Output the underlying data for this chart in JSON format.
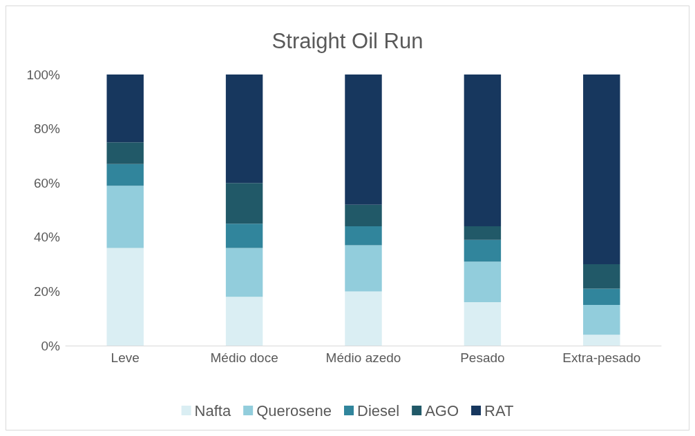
{
  "chart_data": {
    "type": "bar",
    "title": "Straight Oil Run",
    "stacked": true,
    "categories": [
      "Leve",
      "Médio doce",
      "Médio azedo",
      "Pesado",
      "Extra-pesado"
    ],
    "series": [
      {
        "name": "Nafta",
        "color": "#daeef3",
        "values": [
          36,
          18,
          20,
          16,
          4
        ]
      },
      {
        "name": "Querosene",
        "color": "#92cddc",
        "values": [
          23,
          18,
          17,
          15,
          11
        ]
      },
      {
        "name": "Diesel",
        "color": "#31859c",
        "values": [
          8,
          9,
          7,
          8,
          6
        ]
      },
      {
        "name": "AGO",
        "color": "#215968",
        "values": [
          8,
          15,
          8,
          5,
          9
        ]
      },
      {
        "name": "RAT",
        "color": "#17375e",
        "values": [
          25,
          40,
          48,
          56,
          70
        ]
      }
    ],
    "ylim": [
      0,
      100
    ],
    "yticks": [
      {
        "value": 0,
        "label": "0%"
      },
      {
        "value": 20,
        "label": "20%"
      },
      {
        "value": 40,
        "label": "40%"
      },
      {
        "value": 60,
        "label": "60%"
      },
      {
        "value": 80,
        "label": "80%"
      },
      {
        "value": 100,
        "label": "100%"
      }
    ],
    "grid": false,
    "legend": "bottom"
  }
}
